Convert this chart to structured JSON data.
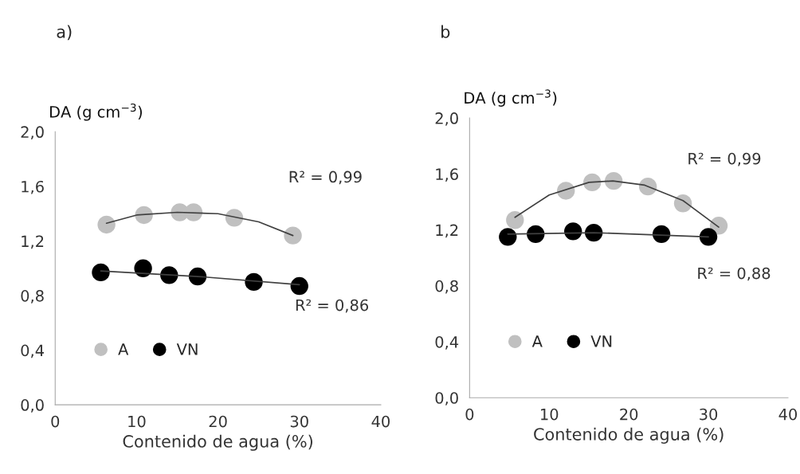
{
  "chart_data": [
    {
      "type": "scatter",
      "title": "a)",
      "xlabel": "Contenido de agua (%)",
      "ylabel": "DA (g cm$^{−3}$)",
      "xlim": [
        0,
        40
      ],
      "xticks": [
        0,
        10,
        20,
        30,
        40
      ],
      "ylim": [
        0,
        2
      ],
      "yticks": [
        {
          "value": 0,
          "label": "0,0"
        },
        {
          "value": 0.4,
          "label": "0,4"
        },
        {
          "value": 0.8,
          "label": "0,8"
        },
        {
          "value": 1.2,
          "label": "1,2"
        },
        {
          "value": 1.6,
          "label": "1,6"
        },
        {
          "value": 2,
          "label": "2,0"
        }
      ],
      "marker": "circle",
      "legend": "bottom left",
      "grid": false,
      "series": [
        {
          "name": "A",
          "color": "#c0c0c0",
          "x": [
            6.3,
            10.9,
            15.3,
            17.0,
            22.0,
            29.2
          ],
          "values": [
            1.32,
            1.39,
            1.41,
            1.41,
            1.37,
            1.24
          ]
        },
        {
          "name": "VN",
          "color": "#000000",
          "x": [
            5.6,
            10.8,
            14.0,
            17.5,
            24.4,
            30.0
          ],
          "values": [
            0.97,
            1.0,
            0.95,
            0.94,
            0.9,
            0.87
          ]
        },
        {
          "type": "line",
          "marker": "none",
          "color": "#404040",
          "x": [
            6.3,
            10,
            15,
            20,
            25,
            29.2
          ],
          "values": [
            1.33,
            1.39,
            1.41,
            1.4,
            1.34,
            1.24
          ]
        },
        {
          "type": "line",
          "marker": "none",
          "color": "#404040",
          "x": [
            5.6,
            17.5,
            30.0
          ],
          "values": [
            0.98,
            0.94,
            0.88
          ]
        }
      ],
      "annotations": [
        "R² = 0,99",
        "R² = 0,86"
      ]
    },
    {
      "type": "scatter",
      "title": "b",
      "xlabel": "Contenido de agua (%)",
      "ylabel": "DA (g cm$^{−3}$)",
      "xlim": [
        0,
        40
      ],
      "xticks": [
        0,
        10,
        20,
        30,
        40
      ],
      "ylim": [
        0,
        2
      ],
      "yticks": [
        {
          "value": 0,
          "label": "0,0"
        },
        {
          "value": 0.4,
          "label": "0,4"
        },
        {
          "value": 0.8,
          "label": "0,8"
        },
        {
          "value": 1.2,
          "label": "1,2"
        },
        {
          "value": 1.6,
          "label": "1,6"
        },
        {
          "value": 2,
          "label": "2,0"
        }
      ],
      "marker": "circle",
      "legend": "bottom left",
      "grid": false,
      "series": [
        {
          "name": "A",
          "color": "#c0c0c0",
          "x": [
            5.7,
            12.1,
            15.4,
            18.1,
            22.4,
            26.8,
            31.3
          ],
          "values": [
            1.27,
            1.48,
            1.54,
            1.55,
            1.51,
            1.39,
            1.23
          ]
        },
        {
          "name": "VN",
          "color": "#000000",
          "x": [
            4.8,
            8.3,
            13.0,
            15.6,
            24.1,
            30.0
          ],
          "values": [
            1.15,
            1.17,
            1.19,
            1.18,
            1.17,
            1.15
          ]
        },
        {
          "type": "line",
          "marker": "none",
          "color": "#404040",
          "x": [
            5.7,
            10,
            15,
            18,
            22,
            26.8,
            31.3
          ],
          "values": [
            1.29,
            1.45,
            1.54,
            1.55,
            1.52,
            1.41,
            1.22
          ]
        },
        {
          "type": "line",
          "marker": "none",
          "color": "#404040",
          "x": [
            4.8,
            15.6,
            30.0
          ],
          "values": [
            1.17,
            1.18,
            1.15
          ]
        }
      ],
      "annotations": [
        "R² = 0,99",
        "R² = 0,88"
      ]
    }
  ]
}
